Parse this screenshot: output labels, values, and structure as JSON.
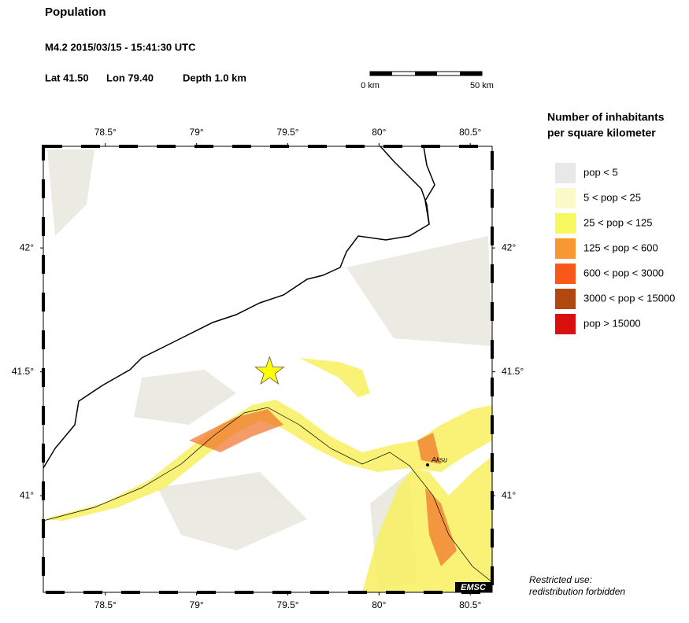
{
  "header": {
    "title": "Population",
    "event": "M4.2  2015/03/15 - 15:41:30 UTC",
    "lat": "Lat 41.50",
    "lon": "Lon 79.40",
    "depth": "Depth 1.0 km"
  },
  "scale_bar": {
    "start": "0 km",
    "end": "50 km"
  },
  "map": {
    "xlim": [
      78.16,
      80.62
    ],
    "ylim": [
      40.61,
      42.41
    ],
    "xticks": [
      {
        "value": 78.5,
        "label": "78.5°"
      },
      {
        "value": 79,
        "label": "79°"
      },
      {
        "value": 79.5,
        "label": "79.5°"
      },
      {
        "value": 80,
        "label": "80°"
      },
      {
        "value": 80.5,
        "label": "80.5°"
      }
    ],
    "yticks": [
      {
        "value": 41,
        "label": "41°"
      },
      {
        "value": 41.5,
        "label": "41.5°"
      },
      {
        "value": 42,
        "label": "42°"
      }
    ],
    "epicenter": {
      "lon": 79.4,
      "lat": 41.5
    },
    "city": "Aksu",
    "credit": "EMSC"
  },
  "legend": {
    "title": [
      "Number of inhabitants",
      "per square kilometer"
    ],
    "items": [
      {
        "label": "pop < 5",
        "color": "#e8e8e8"
      },
      {
        "label": "5 < pop < 25",
        "color": "#fafac8"
      },
      {
        "label": "25 < pop < 125",
        "color": "#f8f860"
      },
      {
        "label": "125 < pop < 600",
        "color": "#f89830"
      },
      {
        "label": "600 < pop < 3000",
        "color": "#f85818"
      },
      {
        "label": "3000 < pop < 15000",
        "color": "#b04810"
      },
      {
        "label": "pop > 15000",
        "color": "#d81010"
      }
    ]
  },
  "notice": [
    "Restricted use:",
    "redistribution forbidden"
  ]
}
